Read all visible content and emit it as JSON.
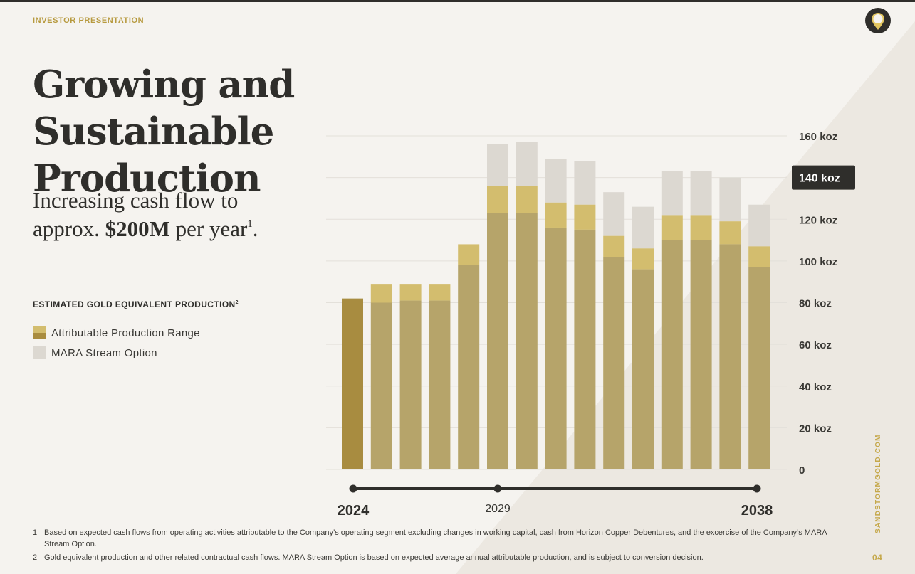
{
  "header": {
    "eyebrow": "INVESTOR PRESENTATION",
    "title_line1": "Growing and Sustainable",
    "title_line2": "Production"
  },
  "subtitle": {
    "line1": "Increasing cash flow to",
    "line2_pre": "approx. ",
    "line2_bold": "$200M",
    "line2_post": " per year",
    "line2_sup": "1",
    "line2_end": "."
  },
  "chart_section": {
    "heading": "ESTIMATED GOLD EQUIVALENT PRODUCTION",
    "heading_sup": "2"
  },
  "chart_data": {
    "type": "bar",
    "stacked": true,
    "ylim": [
      0,
      160
    ],
    "y_ticks": [
      "160 koz",
      "140 koz",
      "120 koz",
      "100 koz",
      "80 koz",
      "60 koz",
      "40 koz",
      "20 koz",
      "0"
    ],
    "highlight_tick": "140 koz",
    "legend": [
      "Attributable Production Range",
      "MARA Stream Option"
    ],
    "timeline_labels": [
      "2024",
      "2029",
      "2038"
    ],
    "base": [
      82,
      80,
      81,
      81,
      98,
      123,
      123,
      116,
      115,
      102,
      96,
      110,
      110,
      108,
      97
    ],
    "range_top": [
      82,
      89,
      89,
      89,
      108,
      136,
      136,
      128,
      127,
      112,
      106,
      122,
      122,
      119,
      107
    ],
    "mara_top": [
      82,
      89,
      89,
      89,
      108,
      156,
      157,
      149,
      148,
      133,
      126,
      143,
      143,
      140,
      127
    ]
  },
  "colors": {
    "first_bar": "#a88c40",
    "base": "#b6a46a",
    "range": "#d3bd6e",
    "mara": "#dcd8d1",
    "timeline": "#2f2e2b",
    "accent": "#c5a84a"
  },
  "footnotes": [
    {
      "num": "1",
      "text": "Based on expected cash flows from operating activities attributable to the Company’s operating segment excluding changes in working capital, cash from Horizon Copper Debentures, and the excercise of the Company’s MARA Stream Option."
    },
    {
      "num": "2",
      "text": "Gold equivalent production and other related contractual cash flows. MARA Stream Option is based on expected average annual attributable production, and is subject to conversion decision."
    }
  ],
  "side": {
    "url": "SANDSTORMGOLD.COM",
    "page": "04"
  },
  "logo_icon": "location-pin-icon"
}
